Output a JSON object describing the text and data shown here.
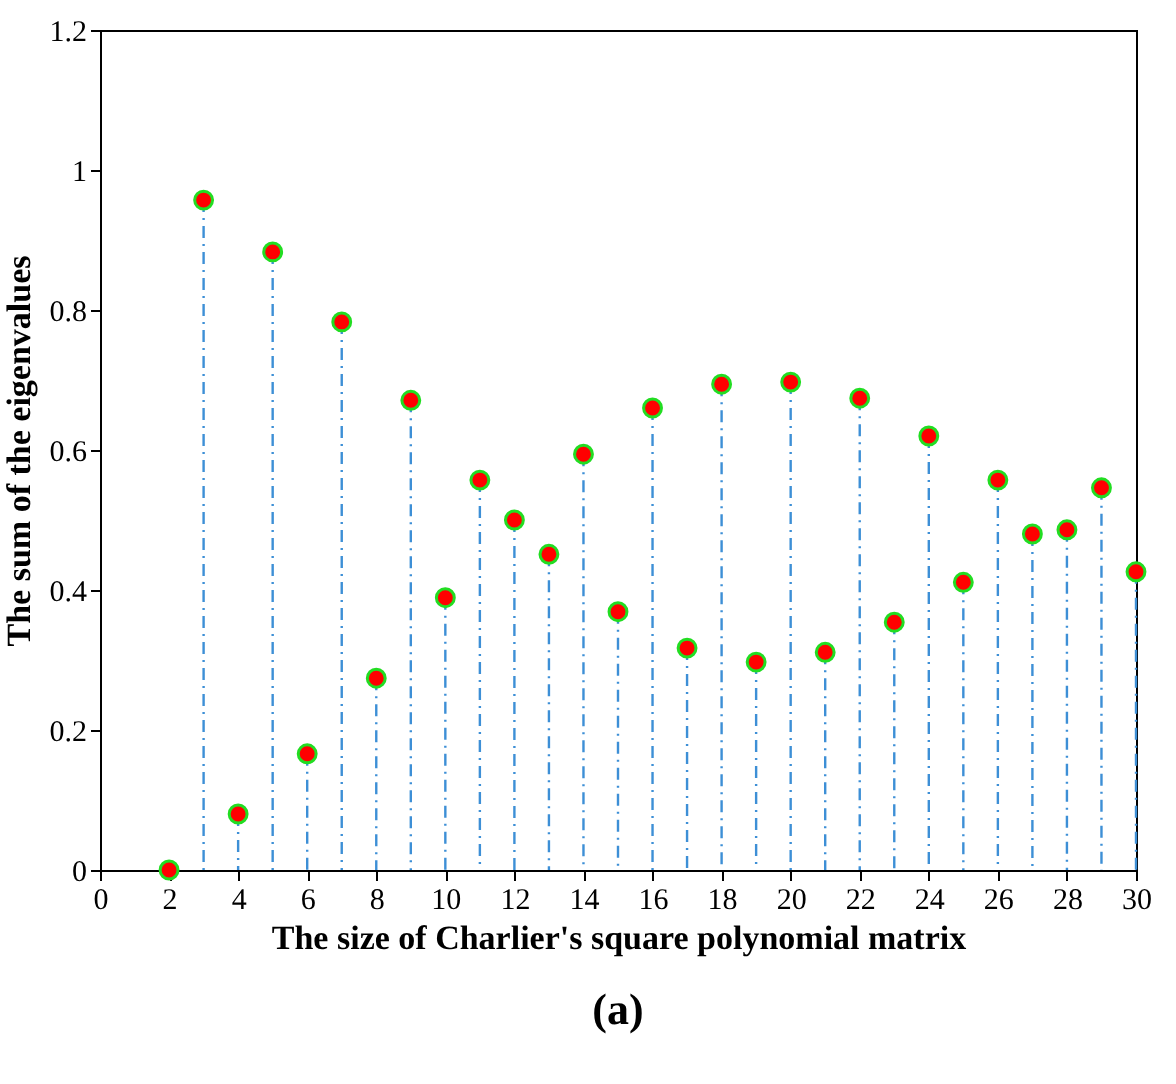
{
  "chart_data": {
    "type": "lollipop",
    "xlabel": "The size of Charlier's square polynomial matrix",
    "ylabel": "The sum of the eigenvalues",
    "annotations": [
      "(a)"
    ],
    "x": [
      2,
      3,
      4,
      5,
      6,
      7,
      8,
      9,
      10,
      11,
      12,
      13,
      14,
      15,
      16,
      17,
      18,
      19,
      20,
      21,
      22,
      23,
      24,
      25,
      26,
      27,
      28,
      29,
      30
    ],
    "series": [
      {
        "color": "#ff0000",
        "values": [
          0,
          0.957,
          0.08,
          0.883,
          0.166,
          0.783,
          0.274,
          0.671,
          0.389,
          0.557,
          0.5,
          0.451,
          0.594,
          0.369,
          0.66,
          0.317,
          0.694,
          0.297,
          0.697,
          0.311,
          0.674,
          0.354,
          0.62,
          0.411,
          0.557,
          0.48,
          0.486,
          0.546,
          0.426
        ]
      }
    ],
    "xlim": [
      0,
      30
    ],
    "xticks": [
      0,
      2,
      4,
      6,
      8,
      10,
      12,
      14,
      16,
      18,
      20,
      22,
      24,
      26,
      28,
      30
    ],
    "ylim": [
      0,
      1.2
    ],
    "yticks": [
      0,
      0.2,
      0.4,
      0.6,
      0.8,
      1,
      1.2
    ],
    "marker": "circle",
    "line_style": "dashed",
    "grid": false
  }
}
